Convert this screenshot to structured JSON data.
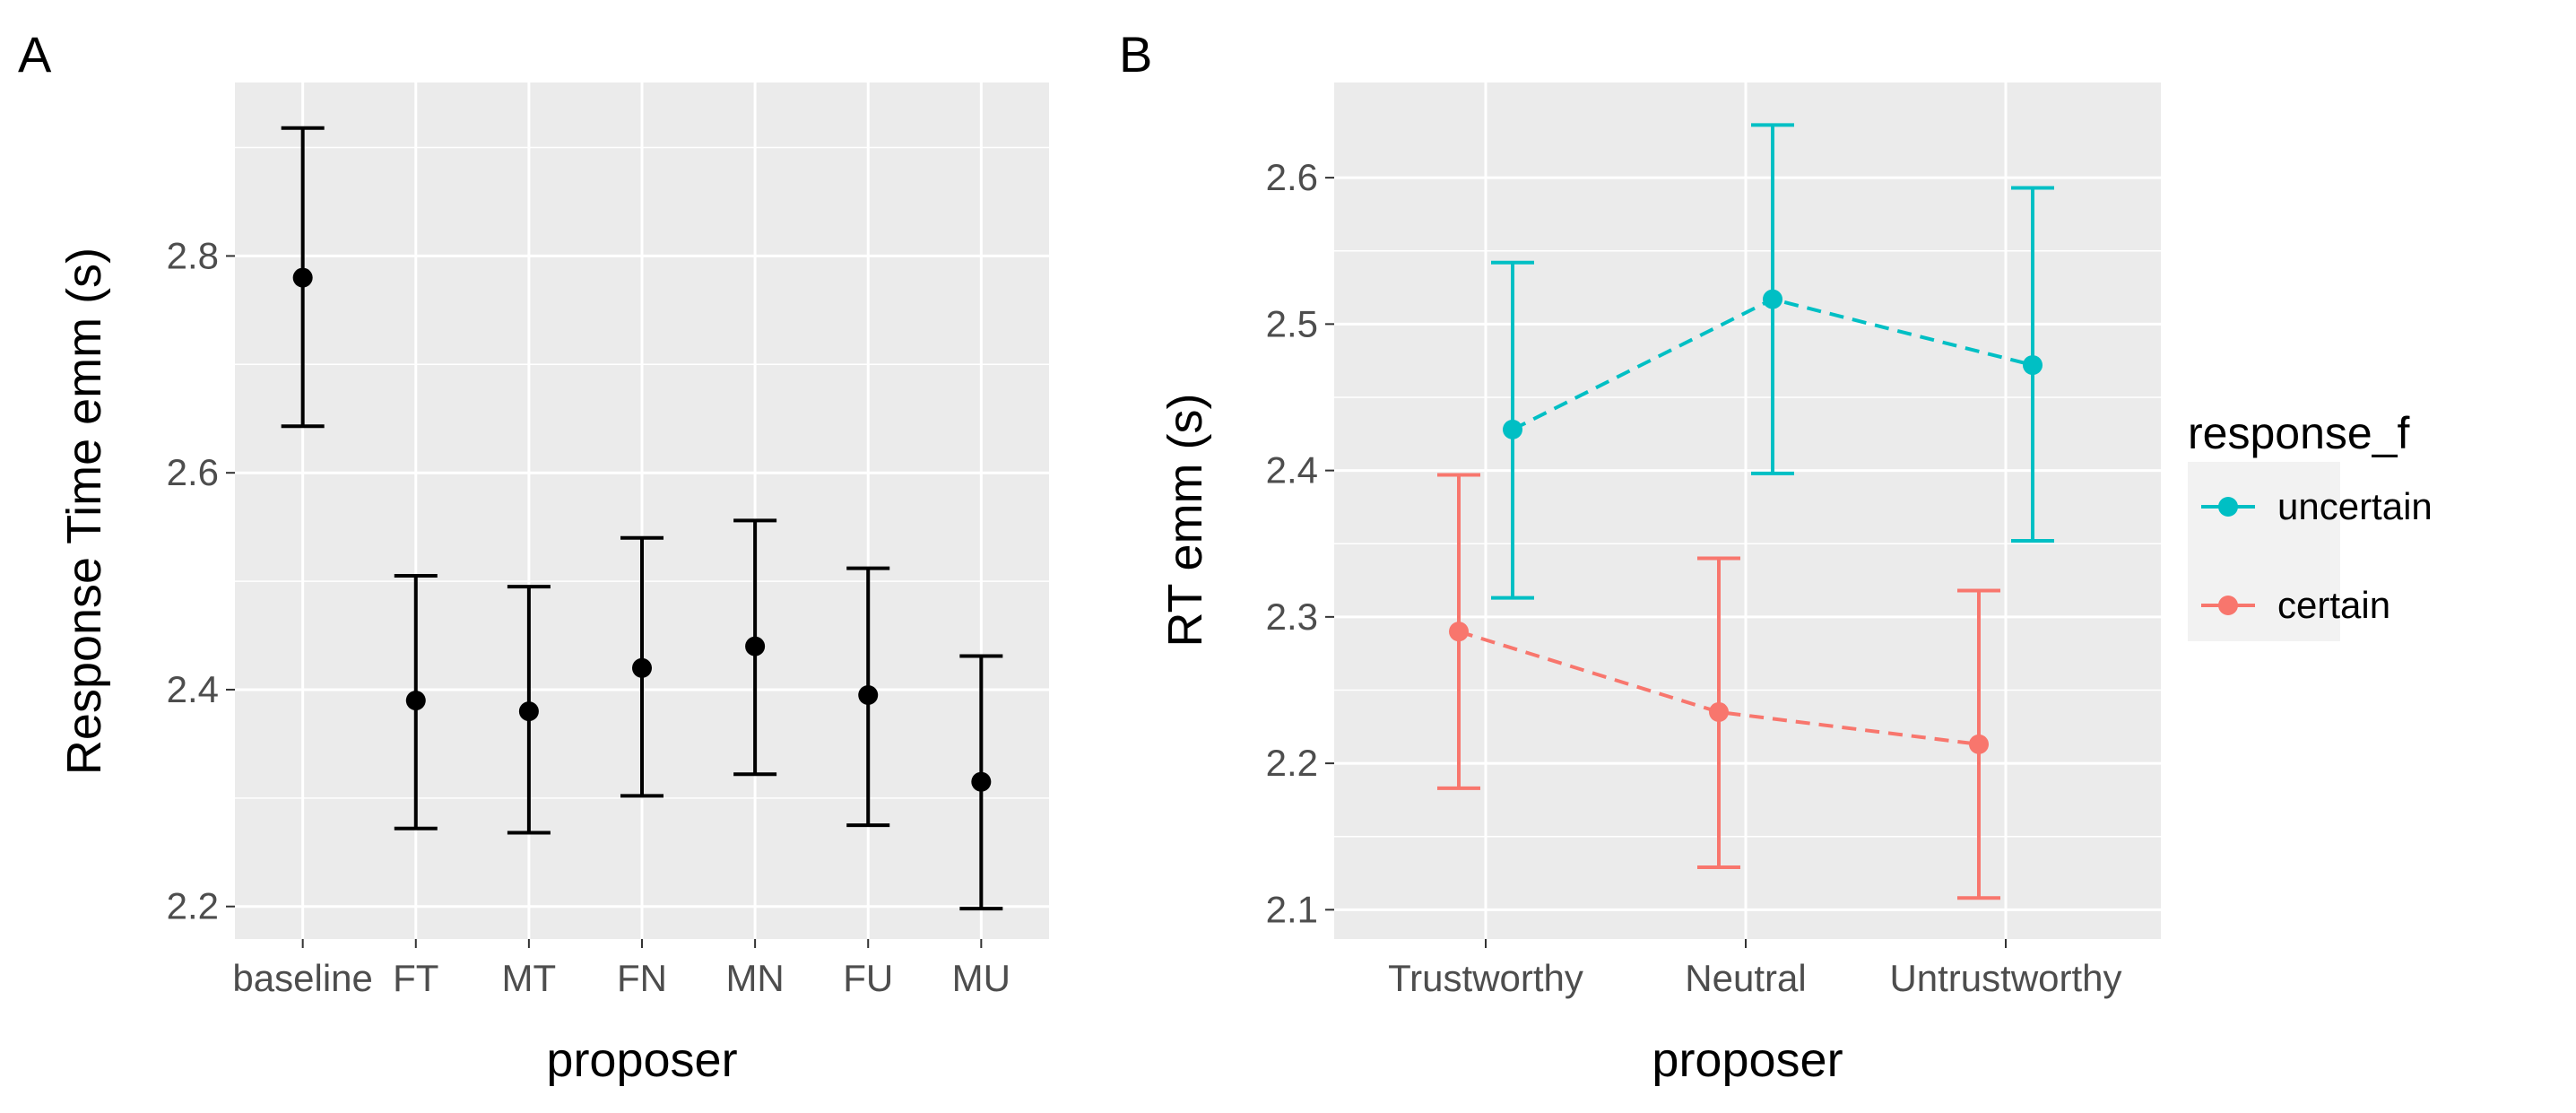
{
  "chart_data": [
    {
      "panel": "A",
      "type": "errorbar",
      "xlabel": "proposer",
      "ylabel": "Response Time emm (s)",
      "categories": [
        "baseline",
        "FT",
        "MT",
        "FN",
        "MN",
        "FU",
        "MU"
      ],
      "values": [
        2.78,
        2.39,
        2.38,
        2.42,
        2.44,
        2.395,
        2.315
      ],
      "lower": [
        2.643,
        2.272,
        2.268,
        2.302,
        2.322,
        2.275,
        2.198
      ],
      "upper": [
        2.918,
        2.505,
        2.495,
        2.54,
        2.556,
        2.512,
        2.431
      ],
      "yticks": [
        2.2,
        2.4,
        2.6,
        2.8
      ],
      "ylim": [
        2.17,
        2.96
      ],
      "color": "#000000"
    },
    {
      "panel": "B",
      "type": "errorbar-line",
      "xlabel": "proposer",
      "ylabel": "RT emm (s)",
      "categories": [
        "Trustworthy",
        "Neutral",
        "Untrustworthy"
      ],
      "yticks": [
        2.1,
        2.2,
        2.3,
        2.4,
        2.5,
        2.6
      ],
      "ylim": [
        2.08,
        2.665
      ],
      "legend_title": "response_f",
      "series": [
        {
          "name": "uncertain",
          "color": "#00BFC4",
          "values": [
            2.428,
            2.517,
            2.472
          ],
          "lower": [
            2.313,
            2.398,
            2.352
          ],
          "upper": [
            2.542,
            2.636,
            2.593
          ]
        },
        {
          "name": "certain",
          "color": "#F8766D",
          "values": [
            2.29,
            2.235,
            2.213
          ],
          "lower": [
            2.183,
            2.129,
            2.108
          ],
          "upper": [
            2.397,
            2.34,
            2.318
          ]
        }
      ]
    }
  ],
  "labels": {
    "panel_a": "A",
    "panel_b": "B"
  },
  "theme": {
    "panel_bg": "#EBEBEB",
    "grid": "#FFFFFF",
    "tick_text": "#4D4D4D"
  }
}
